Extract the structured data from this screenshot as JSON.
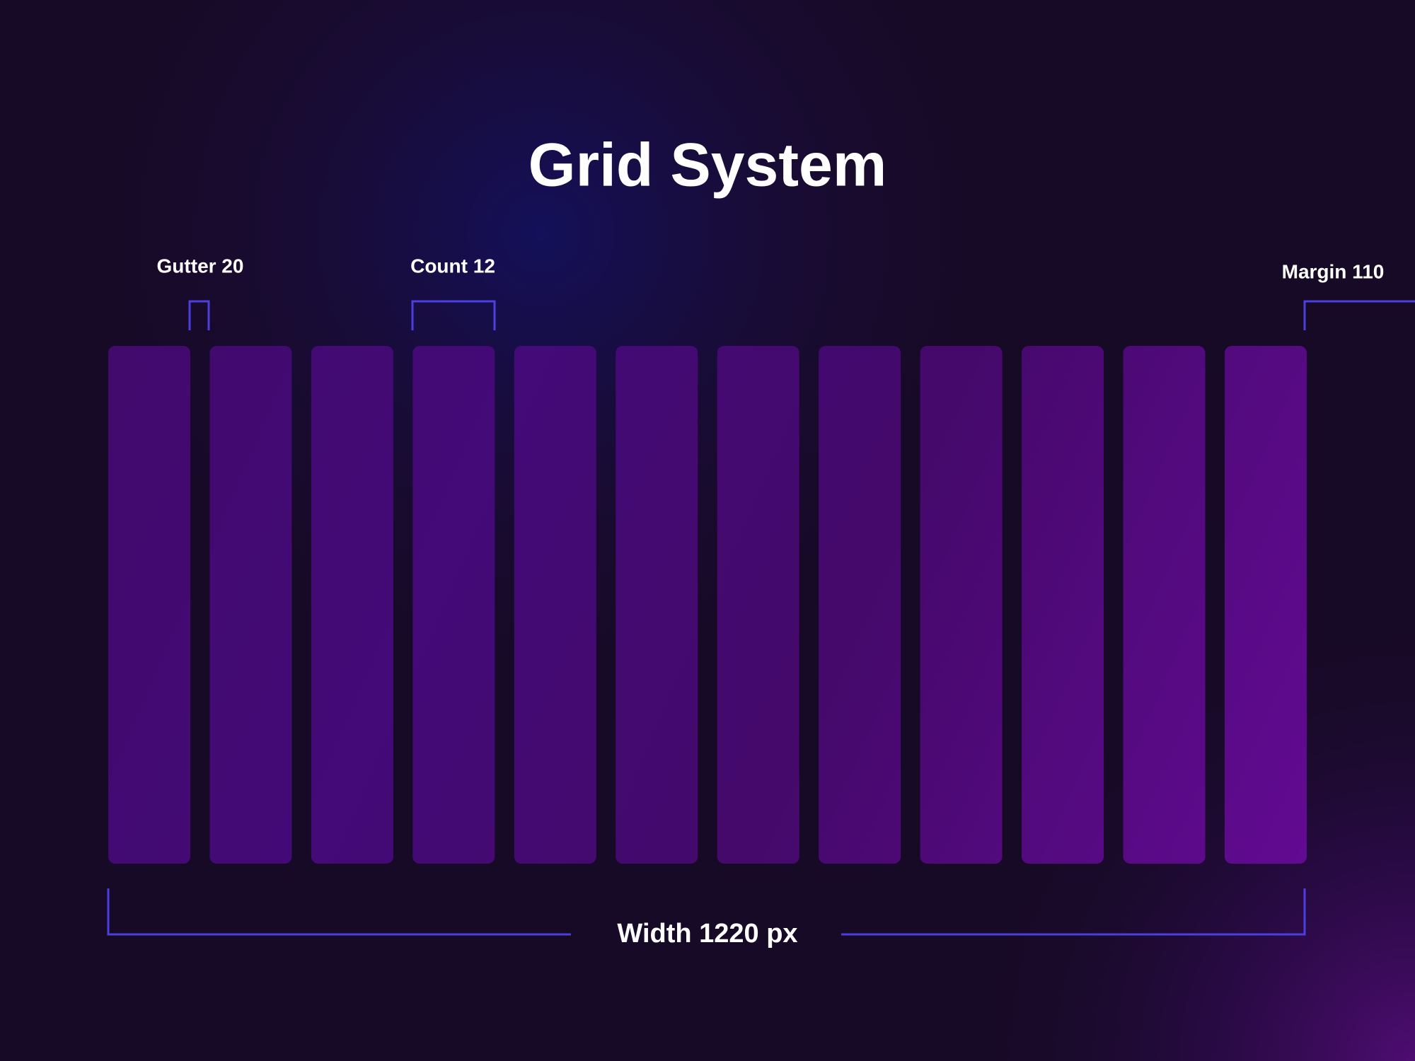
{
  "header": {
    "title": "Grid System"
  },
  "annotations": {
    "gutter": "Gutter 20",
    "count": "Count 12",
    "margin": "Margin 110",
    "width": "Width 1220 px"
  }
}
